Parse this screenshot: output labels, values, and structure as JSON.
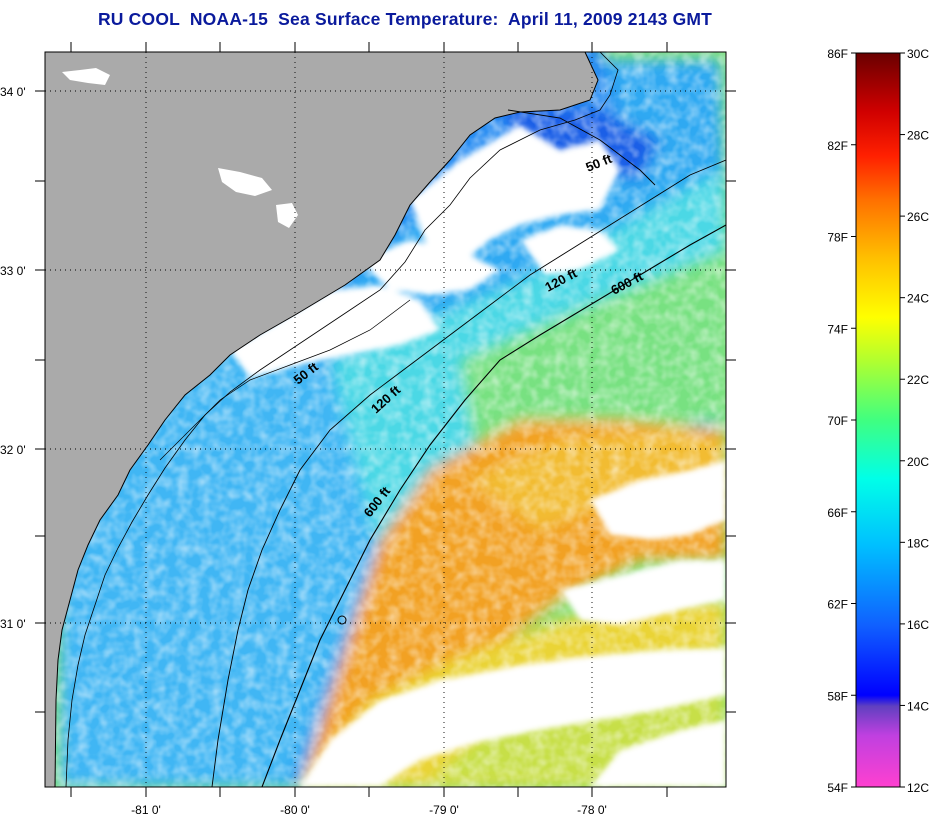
{
  "title": "RU COOL  NOAA-15  Sea Surface Temperature:  April 11, 2009 2143 GMT",
  "map": {
    "lat_labels": [
      "34 0'",
      "33 0'",
      "32 0'",
      "31 0'"
    ],
    "lon_labels": [
      "-81 0'",
      "-80 0'",
      "-79 0'",
      "-78 0'"
    ],
    "contour_labels": [
      "50 ft",
      "120 ft",
      "600 ft",
      "50 ft",
      "120 ft",
      "600 ft"
    ],
    "colors": {
      "land": "#aaaaaa",
      "cloud": "#ffffff",
      "warm": "#f29a12",
      "cool": "#2aa5f0"
    }
  },
  "colorbar": {
    "fahrenheit_labels": [
      "86F",
      "82F",
      "78F",
      "74F",
      "70F",
      "66F",
      "62F",
      "58F",
      "54F"
    ],
    "celsius_labels": [
      "30C",
      "28C",
      "26C",
      "24C",
      "22C",
      "20C",
      "18C",
      "16C",
      "14C",
      "12C"
    ],
    "colors": [
      "#ff40d0",
      "#c040e0",
      "#6040c0",
      "#0000ff",
      "#1870ff",
      "#00c0ff",
      "#00ffee",
      "#30ff80",
      "#a0ff40",
      "#ffff00",
      "#ffc000",
      "#ff8000",
      "#ff3000",
      "#e00000",
      "#a00000",
      "#700000"
    ]
  }
}
